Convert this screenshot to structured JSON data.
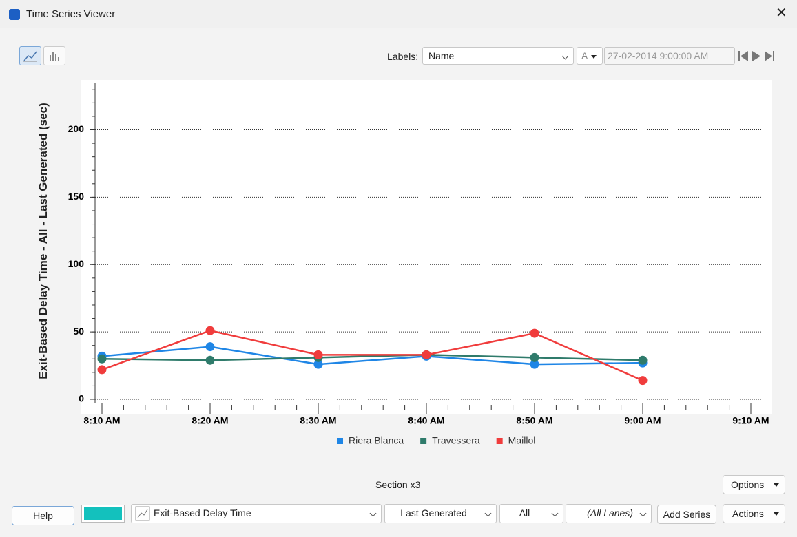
{
  "window": {
    "title": "Time Series Viewer"
  },
  "toolbar": {
    "labels_label": "Labels:",
    "labels_value": "Name",
    "font_button": "A",
    "datetime": "27-02-2014 9:00:00 AM"
  },
  "chart_data": {
    "type": "line",
    "y_label": "Exit-Based Delay Time - All - Last Generated (sec)",
    "categories": [
      "8:10 AM",
      "8:20 AM",
      "8:30 AM",
      "8:40 AM",
      "8:50 AM",
      "9:00 AM",
      "9:10 AM"
    ],
    "series": [
      {
        "name": "Riera Blanca",
        "color": "#1f86e6",
        "values": [
          32,
          39,
          26,
          32,
          26,
          27,
          null
        ]
      },
      {
        "name": "Travessera",
        "color": "#2f7b6b",
        "values": [
          30,
          29,
          31,
          33,
          31,
          29,
          null
        ]
      },
      {
        "name": "Maillol",
        "color": "#f03c3c",
        "values": [
          22,
          51,
          33,
          33,
          49,
          14,
          null
        ]
      }
    ],
    "ylim": [
      0,
      235
    ],
    "yticks": [
      0,
      50,
      100,
      150,
      200
    ],
    "grid": true,
    "legend": "bottom"
  },
  "footer": {
    "section": "Section x3",
    "options": "Options",
    "help": "Help",
    "metric": "Exit-Based Delay Time",
    "generation": "Last Generated",
    "scope": "All",
    "lanes": "(All Lanes)",
    "add_series": "Add Series",
    "actions": "Actions"
  }
}
